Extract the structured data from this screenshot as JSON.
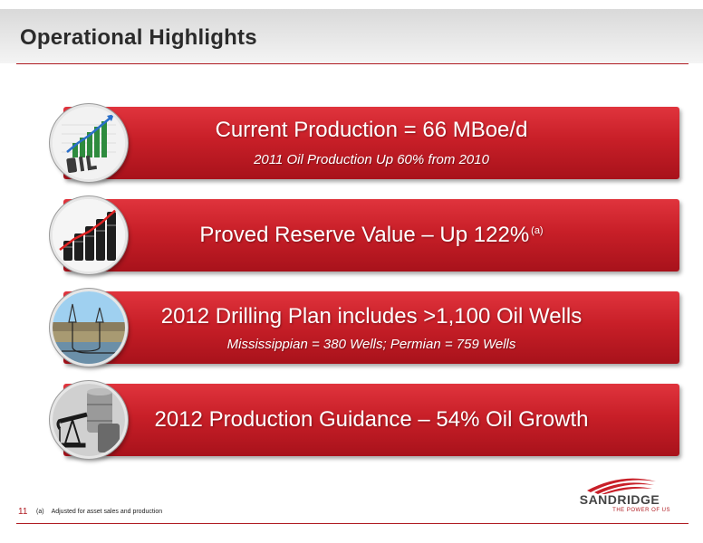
{
  "header": {
    "title": "Operational Highlights"
  },
  "highlights": [
    {
      "icon": "oil-chart-icon",
      "title": "Current Production = 66 MBoe/d",
      "subtitle": "2011 Oil Production Up 60% from 2010"
    },
    {
      "icon": "oil-barrels-chart-icon",
      "title": "Proved Reserve Value – Up 122%",
      "sup": "(a)"
    },
    {
      "icon": "drilling-cross-section-icon",
      "title": "2012 Drilling Plan includes >1,100 Oil Wells",
      "subtitle": "Mississippian = 380 Wells; Permian = 759 Wells"
    },
    {
      "icon": "pumpjack-barrels-icon",
      "title": "2012 Production Guidance – 54% Oil Growth"
    }
  ],
  "footer": {
    "page_number": "11",
    "footnote_mark": "(a)",
    "footnote_text": "Adjusted for asset sales and production",
    "logo_name": "SANDRIDGE",
    "logo_tagline": "THE POWER OF US"
  },
  "colors": {
    "accent": "#c81f28",
    "rule": "#b01c22"
  }
}
